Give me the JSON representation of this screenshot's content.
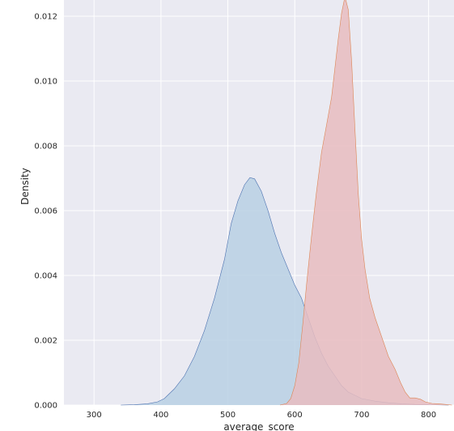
{
  "chart_data": {
    "type": "area",
    "title": "",
    "xlabel": "average_score",
    "ylabel": "Density",
    "xlim": [
      255,
      838
    ],
    "ylim": [
      0,
      0.0125
    ],
    "xticks": [
      300,
      400,
      500,
      600,
      700,
      800
    ],
    "xtick_labels": [
      "300",
      "400",
      "500",
      "600",
      "700",
      "800"
    ],
    "yticks": [
      0,
      0.002,
      0.004,
      0.006,
      0.008,
      0.01,
      0.012
    ],
    "ytick_labels": [
      "0.000",
      "0.002",
      "0.004",
      "0.006",
      "0.008",
      "0.010",
      "0.012"
    ],
    "grid": true,
    "background": "#eaeaf2",
    "series": [
      {
        "color": "#4c72b0",
        "fill": "#b9d0e4",
        "points": [
          [
            340,
            0
          ],
          [
            360,
            1e-05
          ],
          [
            380,
            4e-05
          ],
          [
            395,
            0.0001
          ],
          [
            405,
            0.0002
          ],
          [
            420,
            0.0005
          ],
          [
            435,
            0.0009
          ],
          [
            450,
            0.0015
          ],
          [
            465,
            0.0023
          ],
          [
            480,
            0.0033
          ],
          [
            495,
            0.0045
          ],
          [
            505,
            0.0056
          ],
          [
            515,
            0.0063
          ],
          [
            525,
            0.0068
          ],
          [
            533,
            0.00702
          ],
          [
            540,
            0.00698
          ],
          [
            550,
            0.0066
          ],
          [
            560,
            0.006
          ],
          [
            570,
            0.0053
          ],
          [
            580,
            0.0047
          ],
          [
            590,
            0.0042
          ],
          [
            600,
            0.0037
          ],
          [
            610,
            0.0033
          ],
          [
            620,
            0.0027
          ],
          [
            630,
            0.0021
          ],
          [
            640,
            0.0016
          ],
          [
            650,
            0.0012
          ],
          [
            660,
            0.0009
          ],
          [
            670,
            0.0006
          ],
          [
            680,
            0.0004
          ],
          [
            690,
            0.0003
          ],
          [
            700,
            0.0002
          ],
          [
            720,
            0.00012
          ],
          [
            740,
            7e-05
          ],
          [
            760,
            4e-05
          ],
          [
            780,
            2e-05
          ],
          [
            800,
            1e-05
          ],
          [
            830,
            0
          ]
        ]
      },
      {
        "color": "#dd8452",
        "fill": "#e8bcc0",
        "points": [
          [
            578,
            0
          ],
          [
            588,
            5e-05
          ],
          [
            594,
            0.0002
          ],
          [
            600,
            0.0006
          ],
          [
            606,
            0.0013
          ],
          [
            612,
            0.0025
          ],
          [
            618,
            0.0038
          ],
          [
            625,
            0.0052
          ],
          [
            632,
            0.0065
          ],
          [
            640,
            0.0078
          ],
          [
            648,
            0.0087
          ],
          [
            655,
            0.0095
          ],
          [
            660,
            0.0104
          ],
          [
            665,
            0.0113
          ],
          [
            670,
            0.0121
          ],
          [
            675,
            0.0126
          ],
          [
            680,
            0.0122
          ],
          [
            685,
            0.0106
          ],
          [
            690,
            0.0085
          ],
          [
            695,
            0.0065
          ],
          [
            700,
            0.0051
          ],
          [
            705,
            0.0042
          ],
          [
            712,
            0.0033
          ],
          [
            720,
            0.0027
          ],
          [
            730,
            0.0021
          ],
          [
            740,
            0.0015
          ],
          [
            750,
            0.0011
          ],
          [
            758,
            0.0007
          ],
          [
            765,
            0.0004
          ],
          [
            772,
            0.00022
          ],
          [
            780,
            0.00022
          ],
          [
            788,
            0.00018
          ],
          [
            795,
            0.0001
          ],
          [
            805,
            5e-05
          ],
          [
            815,
            4e-05
          ],
          [
            825,
            2e-05
          ],
          [
            835,
            0
          ]
        ]
      }
    ]
  }
}
